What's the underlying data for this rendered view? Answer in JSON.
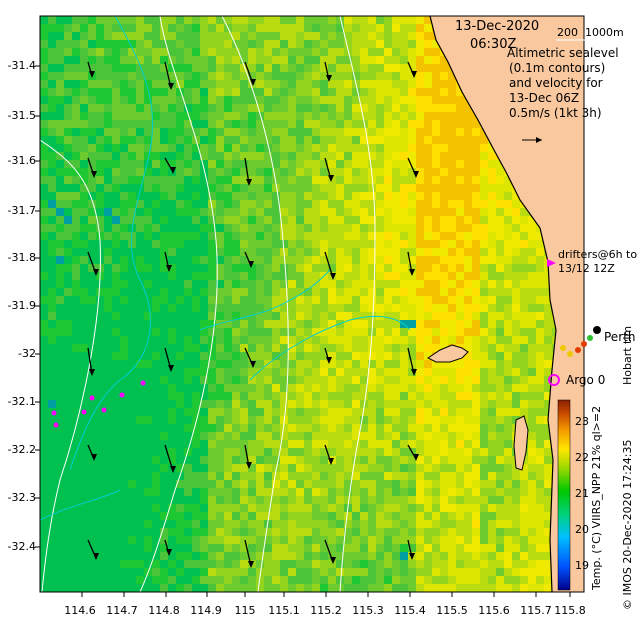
{
  "map": {
    "date": "13-Dec-2020",
    "time": "06:30Z",
    "depth_legend": "200  1000m",
    "legend_lines": [
      "Altimetric sealevel",
      "(0.1m contours)",
      "and velocity for",
      "13-Dec 06Z",
      "0.5m/s (1kt 3h)"
    ],
    "drifters_label": [
      "drifters@6h to",
      "13/12 12Z"
    ],
    "argo_label": "Argo 0",
    "city_label": "Perth",
    "hobart_label": "Hobart tim",
    "credit": "© IMOS 20-Dec-2020 17:24:35",
    "colorbar_title": "Temp. (°C) VIIRS_NPP 21% ql>=2",
    "lat_ticks": [
      "-31.4",
      "-31.5",
      "-31.6",
      "-31.7",
      "-31.8",
      "-31.9",
      "-32",
      "-32.1",
      "-32.2",
      "-32.3",
      "-32.4"
    ],
    "lon_ticks": [
      "114.6",
      "114.7",
      "114.8",
      "114.9",
      "115",
      "115.1",
      "115.2",
      "115.3",
      "115.4",
      "115.5",
      "115.6",
      "115.7",
      "115.8"
    ],
    "colorbar_ticks": [
      "23",
      "22",
      "21",
      "20",
      "19"
    ],
    "colors": {
      "land": "#F9C89E",
      "coastline": "#000000",
      "contour": "#00CED1",
      "isobath": "#FFFFFF",
      "drifter": "#FF00FF",
      "argo": "#FF00FF"
    }
  }
}
